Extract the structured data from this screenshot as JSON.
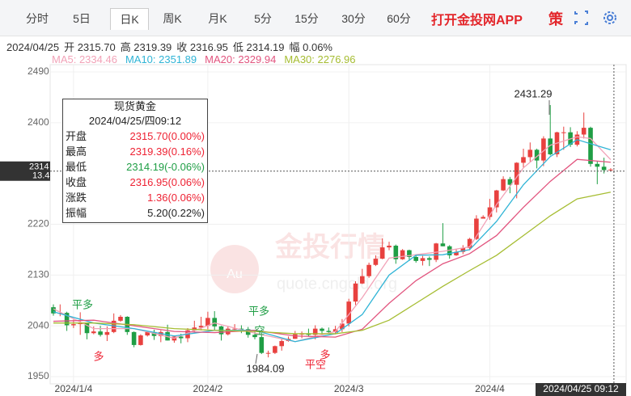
{
  "header": {
    "tabs": [
      "分时",
      "5日",
      "日K",
      "周K",
      "月K",
      "5分",
      "15分",
      "30分",
      "60分"
    ],
    "app": "打开金投网APP",
    "badge": "策"
  },
  "info": [
    "2024/04/25",
    "开 2315.70",
    "高 2319.39",
    "收 2316.95",
    "低 2314.19",
    "幅 0.06%"
  ],
  "tooltip": {
    "title": "现货黄金",
    "date": "2024/04/25/四09:12",
    "rows": [
      [
        "开盘",
        "2315.70(0.00%)"
      ],
      [
        "最高",
        "2319.39(0.16%)"
      ],
      [
        "最低",
        "2314.19(-0.06%)"
      ],
      [
        "收盘",
        "2316.95(0.06%)"
      ],
      [
        "涨跌",
        "1.36(0.06%)"
      ],
      [
        "振幅",
        "5.20(0.22%)"
      ]
    ]
  },
  "price_tag": [
    "2314",
    "13.41"
  ],
  "time_tag": "2024/04/25 09:12",
  "watermark": [
    "金投行情",
    "quote.cngold.org",
    "Au"
  ],
  "chart_data": {
    "type": "candlestick",
    "up_color": "#e8413f",
    "down_color": "#1f9e45",
    "ohlc": [
      [
        2073,
        2078,
        2058,
        2062
      ],
      [
        2062,
        2078,
        2057,
        2063
      ],
      [
        2063,
        2065,
        2031,
        2041
      ],
      [
        2041,
        2051,
        2036,
        2043
      ],
      [
        2043,
        2064,
        2024,
        2045
      ],
      [
        2045,
        2046,
        2016,
        2027
      ],
      [
        2027,
        2039,
        2025,
        2030
      ],
      [
        2030,
        2040,
        2021,
        2024
      ],
      [
        2024,
        2039,
        2013,
        2029
      ],
      [
        2029,
        2062,
        2027,
        2049
      ],
      [
        2049,
        2059,
        2047,
        2056
      ],
      [
        2056,
        2057,
        2024,
        2029
      ],
      [
        2029,
        2030,
        2002,
        2006
      ],
      [
        2006,
        2025,
        2005,
        2023
      ],
      [
        2023,
        2031,
        2021,
        2029
      ],
      [
        2029,
        2033,
        2015,
        2022
      ],
      [
        2022,
        2032,
        2011,
        2029
      ],
      [
        2029,
        2042,
        2014,
        2014
      ],
      [
        2014,
        2023,
        2010,
        2021
      ],
      [
        2021,
        2026,
        2009,
        2018
      ],
      [
        2018,
        2036,
        2011,
        2032
      ],
      [
        2032,
        2049,
        2029,
        2037
      ],
      [
        2037,
        2056,
        2032,
        2040
      ],
      [
        2040,
        2065,
        2034,
        2054
      ],
      [
        2054,
        2066,
        2031,
        2039
      ],
      [
        2039,
        2040,
        2014,
        2025
      ],
      [
        2025,
        2039,
        2023,
        2035
      ],
      [
        2035,
        2043,
        2030,
        2035
      ],
      [
        2035,
        2041,
        2027,
        2034
      ],
      [
        2034,
        2038,
        2019,
        2024
      ],
      [
        2024,
        2032,
        2016,
        2020
      ],
      [
        2020,
        2033,
        1990,
        1992
      ],
      [
        1992,
        1996,
        1984.09,
        1992
      ],
      [
        1992,
        2005,
        1990,
        2004
      ],
      [
        2004,
        2016,
        1996,
        2013
      ],
      [
        2013,
        2021,
        2012,
        2017
      ],
      [
        2017,
        2031,
        2017,
        2025
      ],
      [
        2025,
        2030,
        2018,
        2026
      ],
      [
        2026,
        2035,
        2021,
        2024
      ],
      [
        2024,
        2041,
        2016,
        2035
      ],
      [
        2035,
        2037,
        2025,
        2031
      ],
      [
        2031,
        2037,
        2027,
        2029
      ],
      [
        2029,
        2040,
        2025,
        2034
      ],
      [
        2034,
        2052,
        2029,
        2044
      ],
      [
        2044,
        2088,
        2039,
        2083
      ],
      [
        2083,
        2119,
        2077,
        2115
      ],
      [
        2115,
        2141,
        2114,
        2128
      ],
      [
        2128,
        2152,
        2125,
        2148
      ],
      [
        2148,
        2165,
        2146,
        2159
      ],
      [
        2159,
        2195,
        2158,
        2179
      ],
      [
        2179,
        2189,
        2174,
        2182
      ],
      [
        2182,
        2184,
        2150,
        2158
      ],
      [
        2158,
        2176,
        2157,
        2174
      ],
      [
        2174,
        2175,
        2155,
        2162
      ],
      [
        2162,
        2167,
        2152,
        2155
      ],
      [
        2155,
        2164,
        2147,
        2160
      ],
      [
        2160,
        2163,
        2146,
        2157
      ],
      [
        2157,
        2187,
        2153,
        2186
      ],
      [
        2186,
        2222,
        2181,
        2181
      ],
      [
        2181,
        2183,
        2159,
        2165
      ],
      [
        2165,
        2176,
        2164,
        2171
      ],
      [
        2171,
        2183,
        2167,
        2178
      ],
      [
        2178,
        2196,
        2174,
        2194
      ],
      [
        2194,
        2236,
        2192,
        2230
      ],
      [
        2230,
        2236,
        2230,
        2233
      ],
      [
        2233,
        2265,
        2228,
        2250
      ],
      [
        2250,
        2281,
        2241,
        2280
      ],
      [
        2280,
        2305,
        2279,
        2300
      ],
      [
        2300,
        2304,
        2275,
        2290
      ],
      [
        2290,
        2330,
        2266,
        2329
      ],
      [
        2329,
        2354,
        2321,
        2339
      ],
      [
        2339,
        2365,
        2331,
        2352
      ],
      [
        2352,
        2354,
        2319,
        2333
      ],
      [
        2333,
        2376,
        2323,
        2372
      ],
      [
        2372,
        2431.29,
        2342,
        2344
      ],
      [
        2344,
        2384,
        2339,
        2383
      ],
      [
        2383,
        2393,
        2352,
        2383
      ],
      [
        2383,
        2392,
        2357,
        2361
      ],
      [
        2361,
        2385,
        2358,
        2379
      ],
      [
        2379,
        2418,
        2372,
        2391
      ],
      [
        2391,
        2393,
        2322,
        2327
      ],
      [
        2327,
        2332,
        2291,
        2322
      ],
      [
        2322,
        2338,
        2310,
        2316
      ],
      [
        2315.7,
        2319.39,
        2314.19,
        2316.95
      ]
    ],
    "series": [
      {
        "name": "MA5: 2334.46",
        "color": "#f2a3b8",
        "x": [
          0,
          6,
          12,
          18,
          24,
          30,
          36,
          42,
          46,
          50,
          54,
          58,
          62,
          66,
          70,
          74,
          78,
          80,
          83
        ],
        "values": [
          2070,
          2035,
          2035,
          2018,
          2045,
          2027,
          2012,
          2030,
          2090,
          2160,
          2166,
          2172,
          2180,
          2255,
          2320,
          2360,
          2375,
          2372,
          2334.46
        ]
      },
      {
        "name": "MA10: 2351.89",
        "color": "#2fb4d6",
        "x": [
          0,
          6,
          12,
          18,
          24,
          30,
          36,
          42,
          46,
          50,
          54,
          58,
          62,
          66,
          70,
          74,
          78,
          83
        ],
        "values": [
          2065,
          2045,
          2035,
          2022,
          2032,
          2032,
          2012,
          2026,
          2060,
          2130,
          2165,
          2166,
          2175,
          2225,
          2290,
          2340,
          2370,
          2351.89
        ]
      },
      {
        "name": "MA20: 2329.94",
        "color": "#e2557f",
        "x": [
          0,
          6,
          12,
          18,
          24,
          30,
          36,
          42,
          46,
          50,
          54,
          58,
          62,
          66,
          70,
          74,
          78,
          83
        ],
        "values": [
          2048,
          2050,
          2040,
          2030,
          2028,
          2032,
          2022,
          2020,
          2034,
          2080,
          2120,
          2150,
          2168,
          2200,
          2250,
          2296,
          2335,
          2329.94
        ]
      },
      {
        "name": "MA30: 2276.96",
        "color": "#a6bd32",
        "x": [
          0,
          6,
          12,
          18,
          24,
          30,
          36,
          42,
          46,
          50,
          54,
          58,
          62,
          66,
          70,
          74,
          78,
          83
        ],
        "values": [
          2045,
          2045,
          2042,
          2035,
          2032,
          2030,
          2026,
          2026,
          2032,
          2050,
          2080,
          2110,
          2138,
          2165,
          2200,
          2235,
          2265,
          2276.96
        ]
      }
    ],
    "ylim": [
      1950,
      2490
    ],
    "yticks": [
      1950,
      2040,
      2130,
      2220,
      2400,
      2490
    ],
    "xticks": [
      {
        "value": 3,
        "label": "2024/1/4"
      },
      {
        "value": 23,
        "label": "2024/2"
      },
      {
        "value": 44,
        "label": "2024/3"
      },
      {
        "value": 65,
        "label": "2024/4"
      }
    ],
    "grid": true,
    "annotations": [
      "2431.29",
      "1984.09",
      "平多",
      "多",
      "平多",
      "空",
      "平空",
      "多"
    ]
  }
}
